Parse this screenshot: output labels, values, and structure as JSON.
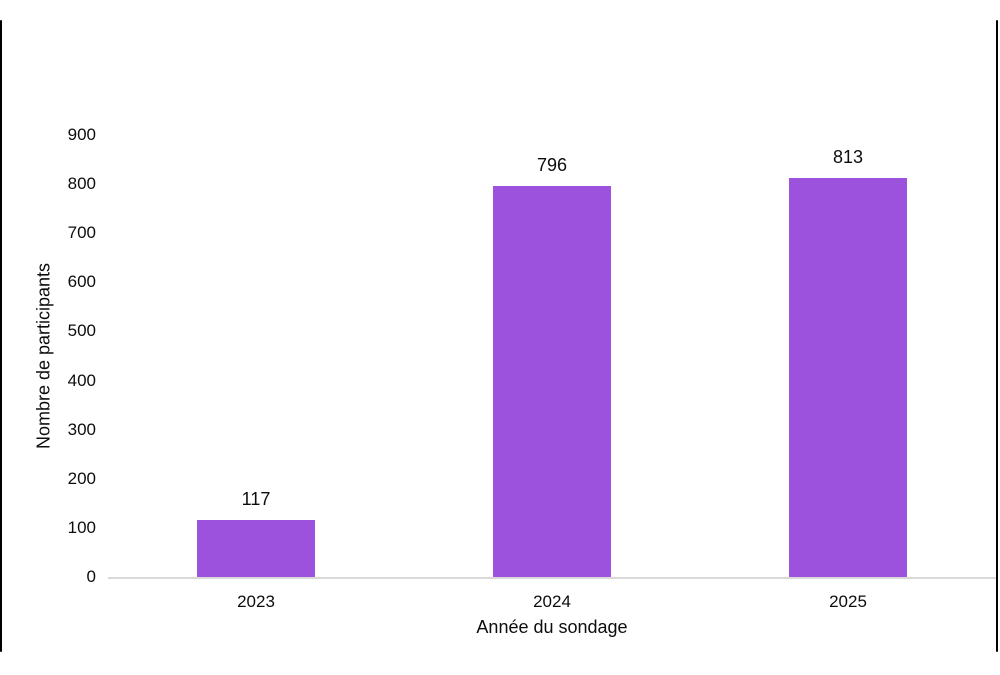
{
  "frame": {
    "border_color": "#000000"
  },
  "chart_data": {
    "type": "bar",
    "title": "",
    "categories": [
      "2023",
      "2024",
      "2025"
    ],
    "values": [
      117,
      796,
      813
    ],
    "data_labels": [
      "117",
      "796",
      "813"
    ],
    "xlabel": "Année du sondage",
    "ylabel": "Nombre de participants",
    "ylim": [
      0,
      900
    ],
    "yticks": [
      0,
      100,
      200,
      300,
      400,
      500,
      600,
      700,
      800,
      900
    ],
    "grid": false,
    "legend": false,
    "bar_color": "#9C52DC",
    "axis_line_color": "#D9D9D9",
    "text_color": "#0D0D0D"
  }
}
